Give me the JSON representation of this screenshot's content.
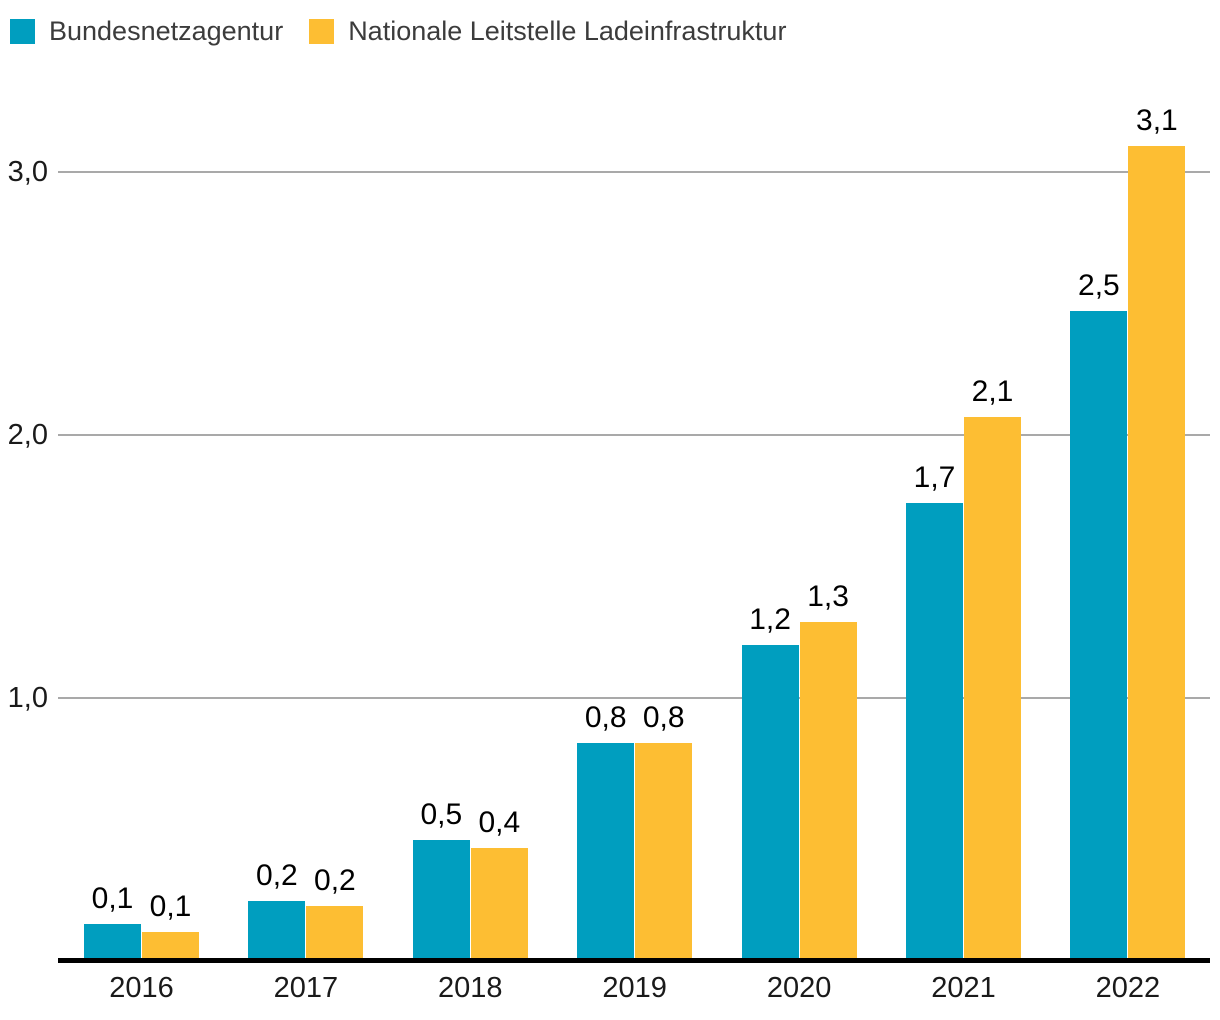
{
  "chart_data": {
    "type": "bar",
    "categories": [
      "2016",
      "2017",
      "2018",
      "2019",
      "2020",
      "2021",
      "2022"
    ],
    "series": [
      {
        "name": "Bundesnetzagentur",
        "color": "#009EBF",
        "value_labels": [
          "0,1",
          "0,2",
          "0,5",
          "0,8",
          "1,2",
          "1,7",
          "2,5"
        ],
        "values": [
          0.1,
          0.2,
          0.5,
          0.8,
          1.2,
          1.7,
          2.5
        ],
        "bar_heights_estimated": [
          0.14,
          0.23,
          0.46,
          0.83,
          1.2,
          1.74,
          2.47
        ]
      },
      {
        "name": "Nationale Leitstelle Ladeinfrastruktur",
        "color": "#FDBE33",
        "value_labels": [
          "0,1",
          "0,2",
          "0,4",
          "0,8",
          "1,3",
          "2,1",
          "3,1"
        ],
        "values": [
          0.1,
          0.2,
          0.4,
          0.8,
          1.3,
          2.1,
          3.1
        ],
        "bar_heights_estimated": [
          0.11,
          0.21,
          0.43,
          0.83,
          1.29,
          2.07,
          3.1
        ]
      }
    ],
    "y_axis": {
      "ticks": [
        {
          "value": 1,
          "label": "1,0"
        },
        {
          "value": 2,
          "label": "2,0"
        },
        {
          "value": 3,
          "label": "3,0"
        }
      ],
      "range": [
        0,
        3.3
      ],
      "gridlines": true
    },
    "xlabel": "",
    "ylabel": "",
    "legend_position": "top-left",
    "decimal_separator": ","
  },
  "legend": {
    "items": [
      {
        "label": "Bundesnetzagentur",
        "color": "#009EBF"
      },
      {
        "label": "Nationale Leitstelle Ladeinfrastruktur",
        "color": "#FDBE33"
      }
    ]
  },
  "colors": {
    "series_bundesnetzagentur": "#009EBF",
    "series_nationale_leitstelle": "#FDBE33",
    "gridline": "#A9A9A9",
    "axis_line": "#000000",
    "tick_label": "#1A1A1A",
    "value_label": "#000000",
    "legend_text": "#3C3C3C",
    "background": "#FFFFFF"
  }
}
